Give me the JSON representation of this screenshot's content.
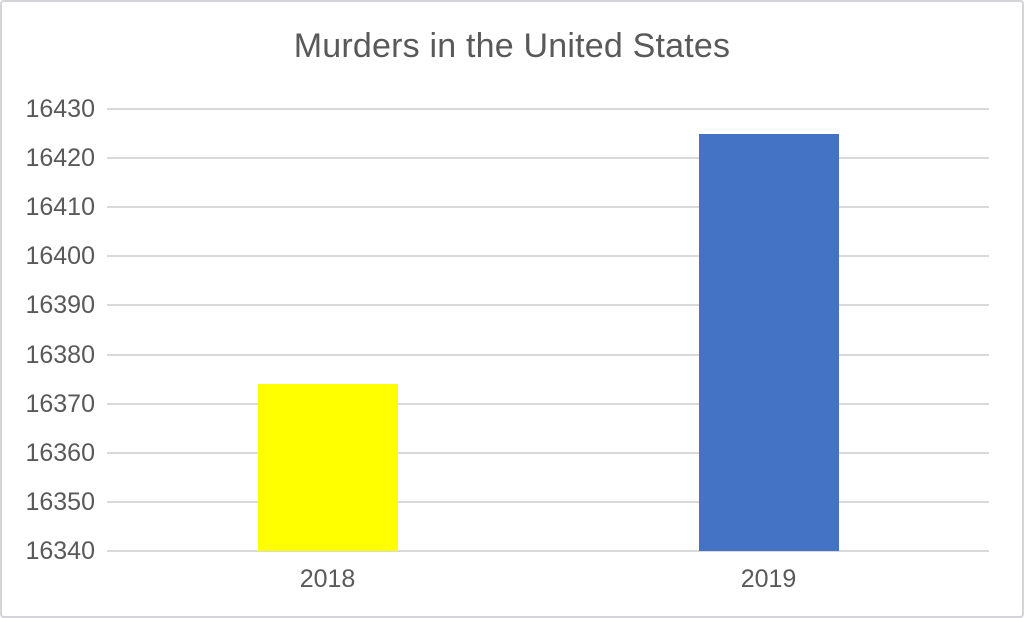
{
  "chart_data": {
    "type": "bar",
    "title": "Murders in the United States",
    "categories": [
      "2018",
      "2019"
    ],
    "values": [
      16374,
      16425
    ],
    "bar_colors": [
      "#ffff00",
      "#4472c4"
    ],
    "xlabel": "",
    "ylabel": "",
    "ylim": [
      16340,
      16430
    ],
    "ytick_step": 10,
    "yticks": [
      16340,
      16350,
      16360,
      16370,
      16380,
      16390,
      16400,
      16410,
      16420,
      16430
    ],
    "grid": "horizontal",
    "legend_position": "none",
    "styles": {
      "title_color": "#595959",
      "axis_text_color": "#595959",
      "gridline_color": "#d9d9d9",
      "border_color": "#d4d4d9",
      "background_color": "#ffffff"
    }
  }
}
